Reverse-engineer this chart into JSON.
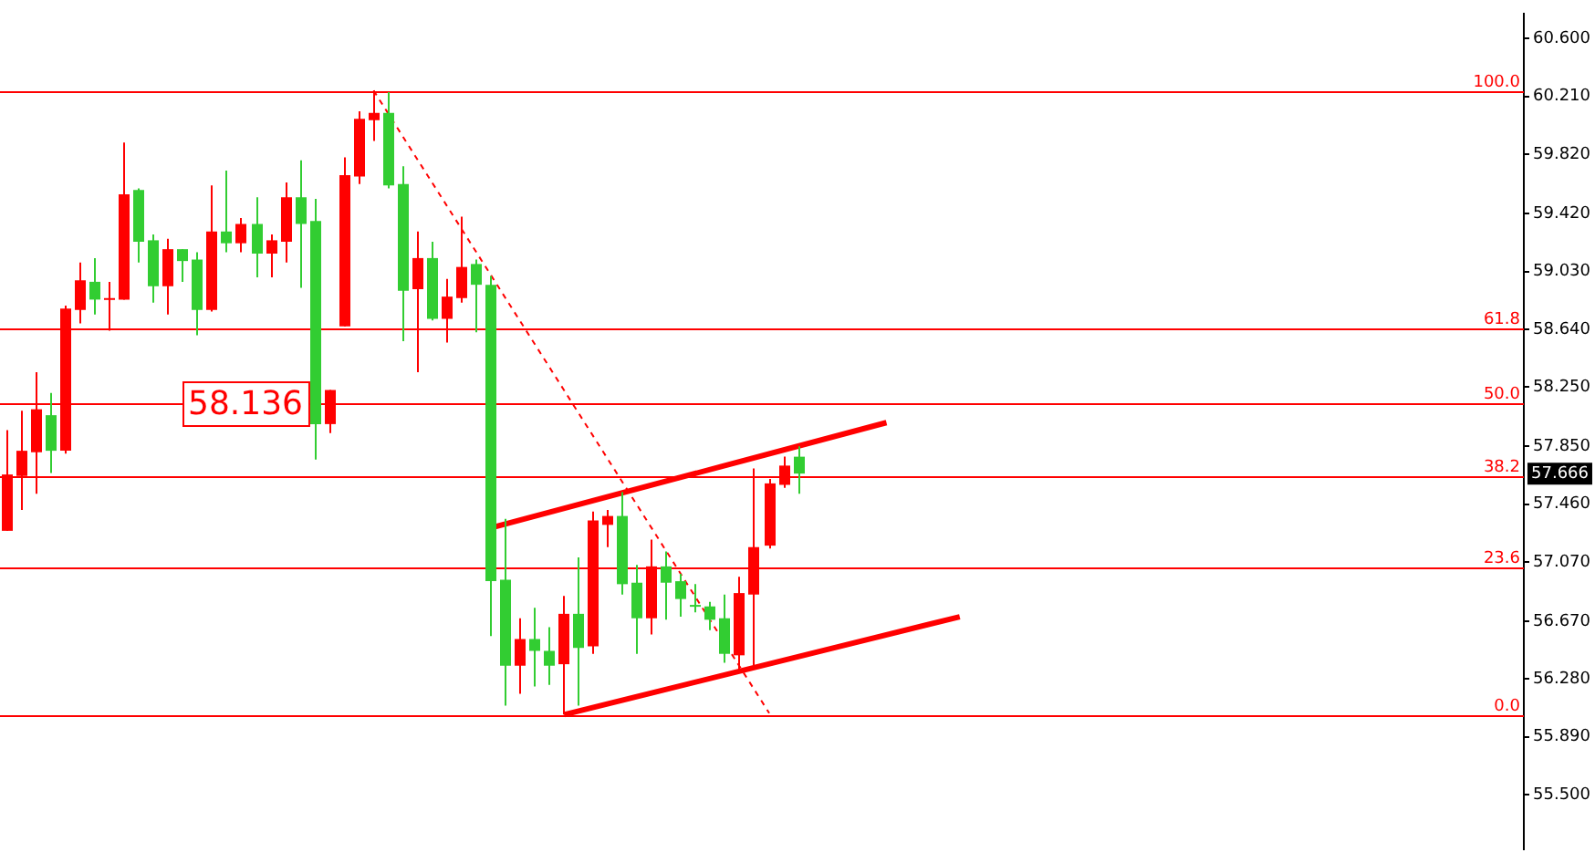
{
  "chart_data": {
    "type": "candlestick",
    "categories": [
      null,
      null,
      null,
      null,
      null,
      null,
      null,
      null,
      null,
      null,
      null,
      null,
      null,
      null,
      null,
      null,
      null,
      null,
      null,
      null,
      null,
      null,
      null,
      null,
      null,
      null,
      null,
      null,
      null,
      null,
      null,
      null,
      null,
      null,
      null,
      null,
      null,
      null,
      null,
      null,
      null,
      null,
      null,
      null,
      null,
      null,
      null,
      null,
      null,
      null,
      null,
      null,
      null,
      null,
      null,
      null,
      null,
      null,
      null,
      null,
      null,
      null,
      null,
      null,
      null,
      null,
      null,
      null,
      null,
      null,
      null,
      null,
      null,
      null,
      null,
      null,
      null,
      null,
      null,
      null,
      null,
      null,
      null,
      null,
      null,
      null,
      null,
      null,
      null,
      null,
      null,
      null,
      null,
      null,
      null,
      null,
      null,
      null,
      null,
      null,
      null,
      null,
      null,
      null
    ],
    "ohlc": [
      [
        57.28,
        57.96,
        57.28,
        57.66
      ],
      [
        57.65,
        58.09,
        57.42,
        57.82
      ],
      [
        57.81,
        58.35,
        57.53,
        58.1
      ],
      [
        58.06,
        58.21,
        57.67,
        57.82
      ],
      [
        57.82,
        58.8,
        57.8,
        58.78
      ],
      [
        58.77,
        59.09,
        58.68,
        58.97
      ],
      [
        58.96,
        59.12,
        58.74,
        58.84
      ],
      [
        58.84,
        58.96,
        58.63,
        58.85
      ],
      [
        58.84,
        59.9,
        58.84,
        59.55
      ],
      [
        59.58,
        59.59,
        59.09,
        59.23
      ],
      [
        59.24,
        59.28,
        58.82,
        58.93
      ],
      [
        58.93,
        59.25,
        58.74,
        59.18
      ],
      [
        59.18,
        59.18,
        58.96,
        59.1
      ],
      [
        59.11,
        59.16,
        58.6,
        58.77
      ],
      [
        58.77,
        59.61,
        58.76,
        59.3
      ],
      [
        59.3,
        59.71,
        59.16,
        59.22
      ],
      [
        59.22,
        59.39,
        59.16,
        59.35
      ],
      [
        59.35,
        59.53,
        58.99,
        59.15
      ],
      [
        59.15,
        59.28,
        58.99,
        59.24
      ],
      [
        59.23,
        59.63,
        59.09,
        59.53
      ],
      [
        59.53,
        59.78,
        58.92,
        59.35
      ],
      [
        59.37,
        59.52,
        57.76,
        58.0
      ],
      [
        58.0,
        58.23,
        57.94,
        58.23
      ],
      [
        58.66,
        59.8,
        58.66,
        59.68
      ],
      [
        59.67,
        60.11,
        59.62,
        60.06
      ],
      [
        60.05,
        60.25,
        59.91,
        60.1
      ],
      [
        60.1,
        60.24,
        59.59,
        59.61
      ],
      [
        59.62,
        59.74,
        58.56,
        58.9
      ],
      [
        58.91,
        59.3,
        58.35,
        59.12
      ],
      [
        59.12,
        59.23,
        58.7,
        58.71
      ],
      [
        58.71,
        58.98,
        58.55,
        58.86
      ],
      [
        58.85,
        59.4,
        58.82,
        59.06
      ],
      [
        59.08,
        59.11,
        58.62,
        58.94
      ],
      [
        58.94,
        59.0,
        56.57,
        56.94
      ],
      [
        56.95,
        57.36,
        56.1,
        56.37
      ],
      [
        56.37,
        56.69,
        56.18,
        56.55
      ],
      [
        56.55,
        56.76,
        56.23,
        56.47
      ],
      [
        56.47,
        56.63,
        56.24,
        56.37
      ],
      [
        56.38,
        56.84,
        56.04,
        56.72
      ],
      [
        56.72,
        57.1,
        56.1,
        56.49
      ],
      [
        56.5,
        57.41,
        56.45,
        57.35
      ],
      [
        57.32,
        57.42,
        57.17,
        57.38
      ],
      [
        57.38,
        57.54,
        56.85,
        56.92
      ],
      [
        56.93,
        57.05,
        56.45,
        56.69
      ],
      [
        56.69,
        57.22,
        56.58,
        57.04
      ],
      [
        57.04,
        57.14,
        56.68,
        56.93
      ],
      [
        56.94,
        56.99,
        56.7,
        56.82
      ],
      [
        56.78,
        56.92,
        56.73,
        56.77
      ],
      [
        56.77,
        56.8,
        56.61,
        56.68
      ],
      [
        56.69,
        56.85,
        56.39,
        56.45
      ],
      [
        56.44,
        56.97,
        56.33,
        56.86
      ],
      [
        56.85,
        57.7,
        56.37,
        57.17
      ],
      [
        57.18,
        57.63,
        57.16,
        57.6
      ],
      [
        57.59,
        57.78,
        57.57,
        57.72
      ],
      [
        57.78,
        57.85,
        57.53,
        57.666
      ],
      null,
      null,
      null,
      null,
      null,
      null,
      null,
      null,
      null,
      null,
      null,
      null,
      null,
      null,
      null,
      null,
      null,
      null,
      null,
      null,
      null,
      null,
      null,
      null,
      null,
      null,
      null,
      null,
      null,
      null,
      null,
      null,
      null,
      null,
      null,
      null,
      null,
      null,
      null,
      null,
      null,
      null,
      null,
      null,
      null,
      null,
      null,
      null,
      null
    ],
    "colors": [
      "#ff0000",
      "#ff0000",
      "#ff0000",
      "#32cd32",
      "#ff0000",
      "#ff0000",
      "#32cd32",
      "#ff0000",
      "#ff0000",
      "#32cd32",
      "#32cd32",
      "#ff0000",
      "#32cd32",
      "#32cd32",
      "#ff0000",
      "#32cd32",
      "#ff0000",
      "#32cd32",
      "#ff0000",
      "#ff0000",
      "#32cd32",
      "#32cd32",
      "#ff0000",
      "#ff0000",
      "#ff0000",
      "#ff0000",
      "#32cd32",
      "#32cd32",
      "#ff0000",
      "#32cd32",
      "#ff0000",
      "#ff0000",
      "#32cd32",
      "#32cd32",
      "#32cd32",
      "#ff0000",
      "#32cd32",
      "#32cd32",
      "#ff0000",
      "#32cd32",
      "#ff0000",
      "#ff0000",
      "#32cd32",
      "#32cd32",
      "#ff0000",
      "#32cd32",
      "#32cd32",
      "#32cd32",
      "#32cd32",
      "#32cd32",
      "#ff0000",
      "#ff0000",
      "#ff0000",
      "#ff0000",
      "#32cd32",
      null,
      null,
      null,
      null,
      null,
      null,
      null,
      null,
      null,
      null,
      null,
      null,
      null,
      null,
      null,
      null,
      null,
      null,
      null,
      null,
      null,
      null,
      null,
      null,
      null,
      null,
      null,
      null,
      null,
      null,
      null,
      null,
      null,
      null,
      null,
      null,
      null,
      null,
      null,
      null,
      null,
      null,
      null,
      null,
      null,
      null,
      null,
      null,
      null
    ],
    "series": [
      {
        "type": "line",
        "color": "#ff0000",
        "line_style": "solid",
        "values": [
          null,
          null,
          null,
          null,
          null,
          null,
          null,
          null,
          null,
          null,
          null,
          null,
          null,
          null,
          null,
          null,
          null,
          null,
          null,
          null,
          null,
          null,
          null,
          null,
          null,
          null,
          null,
          null,
          null,
          null,
          null,
          null,
          null,
          57.3,
          null,
          null,
          null,
          null,
          null,
          null,
          null,
          null,
          null,
          null,
          null,
          null,
          null,
          null,
          null,
          null,
          null,
          null,
          null,
          null,
          null,
          null,
          null,
          null,
          null,
          null,
          58.01,
          null,
          null,
          null,
          null,
          null,
          null,
          null,
          null,
          null,
          null,
          null,
          null,
          null,
          null,
          null,
          null,
          null,
          null,
          null,
          null,
          null,
          null,
          null,
          null,
          null,
          null,
          null,
          null,
          null,
          null,
          null,
          null,
          null,
          null,
          null,
          null,
          null,
          null,
          null,
          null,
          null,
          null,
          null
        ]
      },
      {
        "type": "line",
        "color": "#ff0000",
        "line_style": "solid",
        "values": [
          null,
          null,
          null,
          null,
          null,
          null,
          null,
          null,
          null,
          null,
          null,
          null,
          null,
          null,
          null,
          null,
          null,
          null,
          null,
          null,
          null,
          null,
          null,
          null,
          null,
          null,
          null,
          null,
          null,
          null,
          null,
          null,
          null,
          null,
          null,
          null,
          null,
          null,
          56.04,
          null,
          null,
          null,
          null,
          null,
          null,
          null,
          null,
          null,
          null,
          null,
          null,
          null,
          null,
          null,
          null,
          null,
          null,
          null,
          null,
          null,
          null,
          null,
          null,
          null,
          null,
          56.7,
          null,
          null,
          null,
          null,
          null,
          null,
          null,
          null,
          null,
          null,
          null,
          null,
          null,
          null,
          null,
          null,
          null,
          null,
          null,
          null,
          null,
          null,
          null,
          null,
          null,
          null,
          null,
          null,
          null,
          null,
          null,
          null,
          null,
          null,
          null,
          null,
          null,
          null
        ]
      },
      {
        "type": "line",
        "color": "#ff0000",
        "line_style": "dashed",
        "values": [
          null,
          null,
          null,
          null,
          null,
          null,
          null,
          null,
          null,
          null,
          null,
          null,
          null,
          null,
          null,
          null,
          null,
          null,
          null,
          null,
          null,
          null,
          null,
          null,
          null,
          60.25,
          null,
          null,
          null,
          null,
          null,
          null,
          null,
          null,
          null,
          null,
          null,
          null,
          null,
          null,
          null,
          null,
          null,
          null,
          null,
          null,
          null,
          null,
          null,
          null,
          null,
          null,
          56.05,
          null,
          null,
          null,
          null,
          null,
          null,
          null,
          null,
          null,
          null,
          null,
          null,
          null,
          null,
          null,
          null,
          null,
          null,
          null,
          null,
          null,
          null,
          null,
          null,
          null,
          null,
          null,
          null,
          null,
          null,
          null,
          null,
          null,
          null,
          null,
          null,
          null,
          null,
          null,
          null,
          null,
          null,
          null,
          null,
          null,
          null,
          null,
          null,
          null,
          null,
          null
        ]
      }
    ],
    "ylim": [
      55.13,
      60.77
    ],
    "yticks": [
      {
        "value": 60.6,
        "label": "60.600"
      },
      {
        "value": 60.21,
        "label": "60.210"
      },
      {
        "value": 59.82,
        "label": "59.820"
      },
      {
        "value": 59.42,
        "label": "59.420"
      },
      {
        "value": 59.03,
        "label": "59.030"
      },
      {
        "value": 58.64,
        "label": "58.640"
      },
      {
        "value": 58.25,
        "label": "58.250"
      },
      {
        "value": 57.85,
        "label": "57.850"
      },
      {
        "value": 57.46,
        "label": "57.460"
      },
      {
        "value": 57.07,
        "label": "57.070"
      },
      {
        "value": 56.67,
        "label": "56.670"
      },
      {
        "value": 56.28,
        "label": "56.280"
      },
      {
        "value": 55.89,
        "label": "55.890"
      },
      {
        "value": 55.5,
        "label": "55.500"
      }
    ],
    "ref_lines": [
      {
        "axis": "y",
        "value": 60.25,
        "color": "#ff0000"
      },
      {
        "axis": "y",
        "value": 58.642,
        "color": "#ff0000"
      },
      {
        "axis": "y",
        "value": 58.145,
        "color": "#ff0000"
      },
      {
        "axis": "y",
        "value": 57.648,
        "color": "#ff0000"
      },
      {
        "axis": "y",
        "value": 57.034,
        "color": "#ff0000"
      },
      {
        "axis": "y",
        "value": 56.04,
        "color": "#ff0000"
      }
    ],
    "annotations": [
      {
        "text": "100.0",
        "y": 60.25
      },
      {
        "text": "61.8",
        "y": 58.642
      },
      {
        "text": "50.0",
        "y": 58.145
      },
      {
        "text": "38.2",
        "y": 57.648
      },
      {
        "text": "23.6",
        "y": 57.034
      },
      {
        "text": "0.0",
        "y": 56.04
      },
      {
        "text": "58.136",
        "y": 58.136
      },
      {
        "text": "57.666",
        "y": 57.666
      }
    ],
    "tick_labels": "y"
  }
}
